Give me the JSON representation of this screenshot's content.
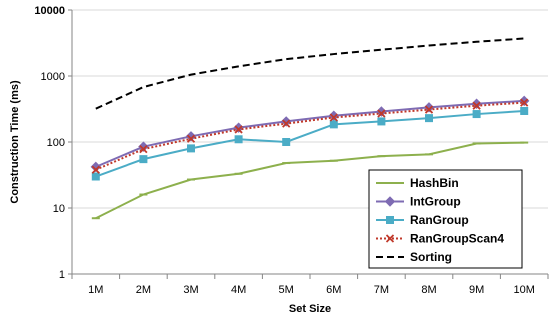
{
  "chart_data": {
    "type": "line",
    "title": "",
    "xlabel": "Set Size",
    "ylabel": "Construction Time (ms)",
    "y_scale": "log",
    "ylim": [
      1,
      10000
    ],
    "y_ticks": [
      "1",
      "10",
      "100",
      "1000",
      "10000"
    ],
    "categories": [
      "1M",
      "2M",
      "3M",
      "4M",
      "5M",
      "6M",
      "7M",
      "8M",
      "9M",
      "10M"
    ],
    "grid": "horizontal",
    "legend_position": "bottom-right",
    "series": [
      {
        "name": "HashBin",
        "color": "#8DB04D",
        "dash": "solid",
        "marker": "dash",
        "values": [
          7,
          16,
          27,
          33,
          48,
          52,
          61,
          65,
          95,
          98
        ]
      },
      {
        "name": "IntGroup",
        "color": "#7E6BB3",
        "dash": "solid",
        "marker": "diamond",
        "values": [
          42,
          85,
          122,
          165,
          205,
          250,
          290,
          335,
          380,
          420
        ]
      },
      {
        "name": "RanGroup",
        "color": "#4BACC6",
        "dash": "solid",
        "marker": "square",
        "values": [
          30,
          55,
          80,
          110,
          100,
          185,
          205,
          230,
          265,
          295
        ]
      },
      {
        "name": "RanGroupScan4",
        "color": "#C0392B",
        "dash": "dotted",
        "marker": "x",
        "values": [
          38,
          78,
          112,
          155,
          190,
          235,
          270,
          310,
          355,
          395
        ]
      },
      {
        "name": "Sorting",
        "color": "#000000",
        "dash": "dashed",
        "marker": "none",
        "values": [
          320,
          680,
          1050,
          1400,
          1800,
          2150,
          2500,
          2900,
          3300,
          3700
        ]
      }
    ]
  }
}
